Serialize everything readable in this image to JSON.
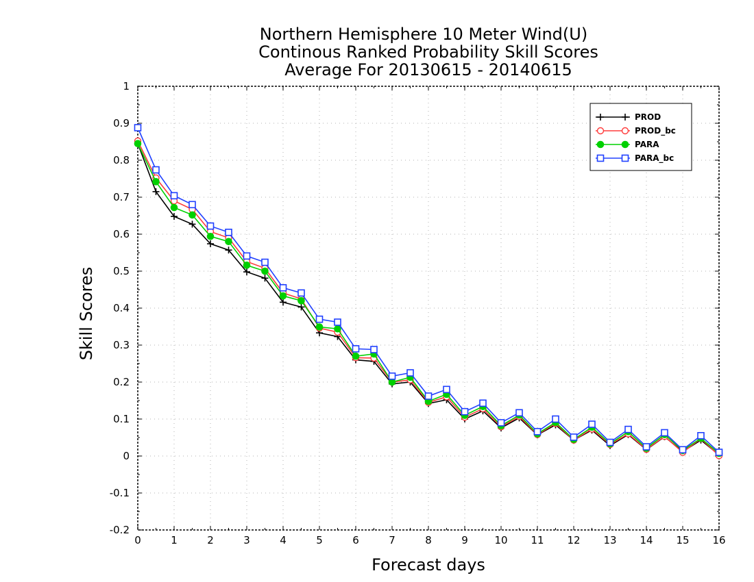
{
  "chart_data": {
    "type": "line",
    "title": [
      "Northern Hemisphere 10 Meter Wind(U)",
      "Continous Ranked Probability Skill Scores",
      "Average For 20130615 - 20140615"
    ],
    "xlabel": "Forecast days",
    "ylabel": "Skill Scores",
    "xlim": [
      0,
      16
    ],
    "ylim": [
      -0.2,
      1
    ],
    "x_ticks": [
      "0",
      "1",
      "2",
      "3",
      "4",
      "5",
      "6",
      "7",
      "8",
      "9",
      "10",
      "11",
      "12",
      "13",
      "14",
      "15",
      "16"
    ],
    "y_ticks": [
      "1",
      "0.9",
      "0.8",
      "0.7",
      "0.6",
      "0.5",
      "0.4",
      "0.3",
      "0.2",
      "0.1",
      "0",
      "-0.1",
      "-0.2"
    ],
    "grid": true,
    "legend_position": "top-right",
    "x": [
      0,
      0.5,
      1,
      1.5,
      2,
      2.5,
      3,
      3.5,
      4,
      4.5,
      5,
      5.5,
      6,
      6.5,
      7,
      7.5,
      8,
      8.5,
      9,
      9.5,
      10,
      10.5,
      11,
      11.5,
      12,
      12.5,
      13,
      13.5,
      14,
      14.5,
      15,
      15.5,
      16
    ],
    "series": [
      {
        "name": "PROD",
        "color": "#000000",
        "marker": "plus",
        "values": [
          0.845,
          0.715,
          0.648,
          0.627,
          0.574,
          0.557,
          0.498,
          0.481,
          0.416,
          0.403,
          0.333,
          0.323,
          0.26,
          0.256,
          0.195,
          0.2,
          0.142,
          0.152,
          0.1,
          0.122,
          0.076,
          0.103,
          0.057,
          0.084,
          0.043,
          0.07,
          0.028,
          0.058,
          0.017,
          0.052,
          0.012,
          0.043,
          0.003
        ]
      },
      {
        "name": "PROD_bc",
        "color": "#ff3b3b",
        "marker": "circle",
        "values": [
          0.852,
          0.752,
          0.69,
          0.667,
          0.607,
          0.59,
          0.526,
          0.508,
          0.441,
          0.425,
          0.346,
          0.335,
          0.266,
          0.265,
          0.2,
          0.206,
          0.145,
          0.16,
          0.105,
          0.128,
          0.079,
          0.107,
          0.058,
          0.088,
          0.043,
          0.073,
          0.031,
          0.06,
          0.018,
          0.053,
          0.01,
          0.047,
          0.001
        ]
      },
      {
        "name": "PARA",
        "color": "#00d000",
        "marker": "filled-circle",
        "values": [
          0.845,
          0.742,
          0.672,
          0.652,
          0.594,
          0.58,
          0.516,
          0.5,
          0.433,
          0.42,
          0.349,
          0.344,
          0.27,
          0.276,
          0.2,
          0.213,
          0.148,
          0.167,
          0.11,
          0.134,
          0.082,
          0.111,
          0.06,
          0.091,
          0.045,
          0.078,
          0.033,
          0.066,
          0.021,
          0.058,
          0.015,
          0.048,
          0.007
        ]
      },
      {
        "name": "PARA_bc",
        "color": "#2040ff",
        "marker": "square",
        "values": [
          0.888,
          0.774,
          0.704,
          0.68,
          0.622,
          0.605,
          0.541,
          0.524,
          0.455,
          0.441,
          0.37,
          0.362,
          0.29,
          0.288,
          0.216,
          0.225,
          0.162,
          0.18,
          0.12,
          0.143,
          0.09,
          0.117,
          0.066,
          0.1,
          0.051,
          0.086,
          0.037,
          0.072,
          0.025,
          0.063,
          0.017,
          0.055,
          0.01
        ]
      }
    ]
  }
}
